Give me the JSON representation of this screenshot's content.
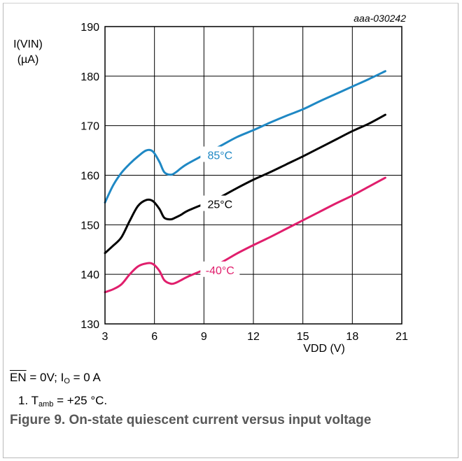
{
  "chart_data": {
    "type": "line",
    "code": "aaa-030242",
    "ylabel_line1": "I(VIN)",
    "ylabel_line2": "(µA)",
    "xlabel": "VDD (V)",
    "xlim": [
      3,
      21
    ],
    "ylim": [
      130,
      190
    ],
    "xticks": [
      3,
      6,
      9,
      12,
      15,
      18,
      21
    ],
    "yticks": [
      130,
      140,
      150,
      160,
      170,
      180,
      190
    ],
    "grid": true,
    "series": [
      {
        "name": "85°C",
        "color": "#1f88c4",
        "x": [
          3,
          3.5,
          4,
          4.5,
          5,
          5.5,
          5.9,
          6.3,
          6.6,
          7.0,
          7.3,
          7.6,
          8,
          9,
          10,
          11,
          12,
          13,
          14,
          15,
          16,
          17,
          18,
          19,
          20
        ],
        "y": [
          154.5,
          158,
          160.5,
          162.3,
          163.8,
          165,
          164.8,
          162.7,
          160.6,
          160.1,
          160.6,
          161.4,
          162.3,
          164.1,
          165.9,
          167.7,
          169.1,
          170.6,
          172,
          173.3,
          174.9,
          176.4,
          177.9,
          179.4,
          181
        ]
      },
      {
        "name": "25°C",
        "color": "#000000",
        "x": [
          3,
          3.5,
          4,
          4.5,
          5,
          5.5,
          5.9,
          6.3,
          6.6,
          7.0,
          7.3,
          7.6,
          8,
          9,
          10,
          11,
          12,
          13,
          14,
          15,
          16,
          17,
          18,
          19,
          20
        ],
        "y": [
          144.3,
          145.8,
          147.5,
          150.8,
          153.8,
          155,
          154.8,
          153.2,
          151.4,
          151.1,
          151.5,
          152,
          152.8,
          154.2,
          155.6,
          157.4,
          159.1,
          160.6,
          162.2,
          163.8,
          165.5,
          167.2,
          168.9,
          170.4,
          172.2
        ]
      },
      {
        "name": "-40°C",
        "color": "#e01e6c",
        "x": [
          3,
          3.5,
          4,
          4.5,
          5,
          5.5,
          5.9,
          6.3,
          6.6,
          7.0,
          7.3,
          7.6,
          8,
          9,
          10,
          11,
          12,
          13,
          14,
          15,
          16,
          17,
          18,
          19,
          20
        ],
        "y": [
          136.4,
          137,
          138,
          140,
          141.6,
          142.2,
          142.1,
          140.7,
          138.8,
          138.1,
          138.3,
          138.8,
          139.5,
          140.9,
          142.3,
          144.2,
          145.9,
          147.5,
          149.2,
          150.9,
          152.6,
          154.3,
          155.9,
          157.7,
          159.5
        ]
      }
    ]
  },
  "conditions": {
    "en": "EN",
    "rest_a": " = 0V; I",
    "sub_o": "O",
    "rest_b": " = 0 A"
  },
  "footnote": {
    "num": "1.  T",
    "sub_amb": "amb",
    "rest": " = +25 °C."
  },
  "caption": "Figure 9.  On-state quiescent current versus input voltage"
}
